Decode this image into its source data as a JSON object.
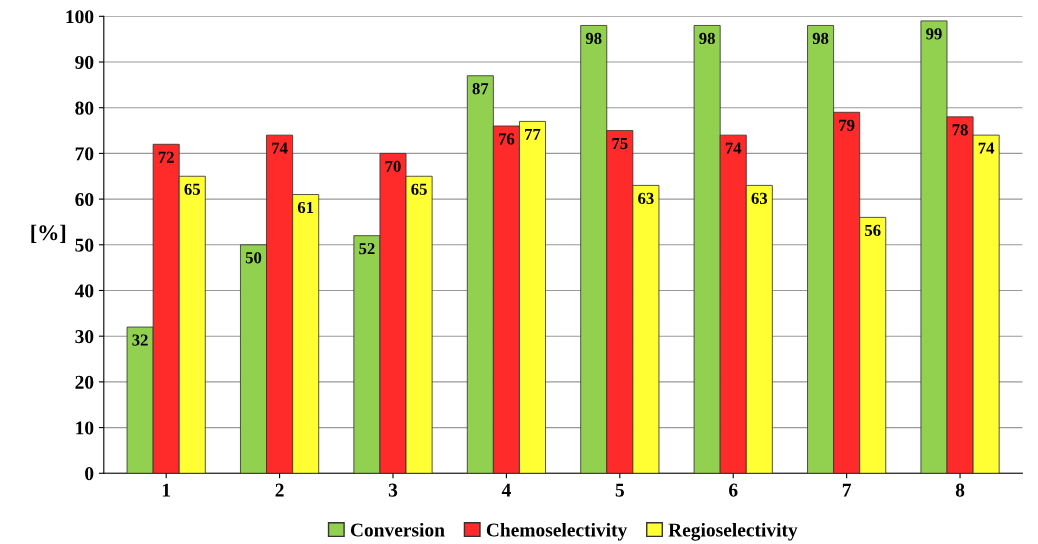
{
  "chart_data": {
    "type": "bar",
    "ylabel": "[%]",
    "categories": [
      "1",
      "2",
      "3",
      "4",
      "5",
      "6",
      "7",
      "8"
    ],
    "series": [
      {
        "name": "Conversion",
        "color": "#92d050",
        "values": [
          32,
          50,
          52,
          87,
          98,
          98,
          98,
          99
        ]
      },
      {
        "name": "Chemoselectivity",
        "color": "#ff2a2a",
        "values": [
          72,
          74,
          70,
          76,
          75,
          74,
          79,
          78
        ]
      },
      {
        "name": "Regioselectivity",
        "color": "#ffff33",
        "values": [
          65,
          61,
          65,
          77,
          63,
          63,
          56,
          74
        ]
      }
    ],
    "ylim": [
      0,
      100
    ],
    "yticks": [
      0,
      10,
      20,
      30,
      40,
      50,
      60,
      70,
      80,
      90,
      100
    ],
    "grid": "y",
    "legend": "bottom",
    "data_labels": true
  }
}
